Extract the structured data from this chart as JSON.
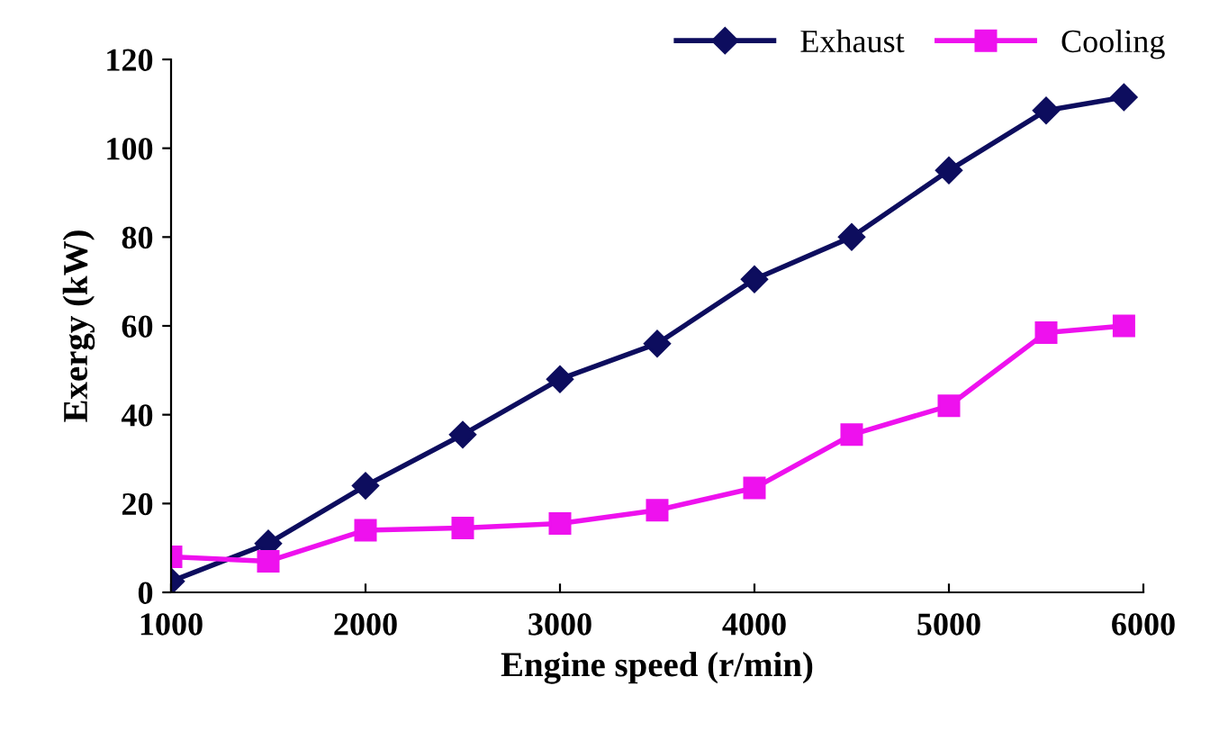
{
  "chart_data": {
    "type": "line",
    "xlabel": "Engine speed (r/min)",
    "ylabel": "Exergy (kW)",
    "x": [
      1000,
      1500,
      2000,
      2500,
      3000,
      3500,
      4000,
      4500,
      5000,
      5500,
      5900
    ],
    "series": [
      {
        "name": "Exhaust",
        "color": "#0d0d5e",
        "marker": "diamond",
        "values": [
          2.5,
          11,
          24,
          35.5,
          48,
          56,
          70.5,
          80,
          95,
          108.5,
          111.5
        ]
      },
      {
        "name": "Cooling",
        "color": "#ee11ee",
        "marker": "square",
        "values": [
          8,
          7,
          14,
          14.5,
          15.5,
          18.5,
          23.5,
          35.5,
          42,
          58.5,
          60
        ]
      }
    ],
    "xlim": [
      1000,
      6000
    ],
    "xticks": [
      1000,
      2000,
      3000,
      4000,
      5000,
      6000
    ],
    "ylim": [
      0,
      120
    ],
    "yticks": [
      0,
      20,
      40,
      60,
      80,
      100,
      120
    ],
    "grid": false,
    "legend": "top right",
    "line_style": "solid"
  }
}
